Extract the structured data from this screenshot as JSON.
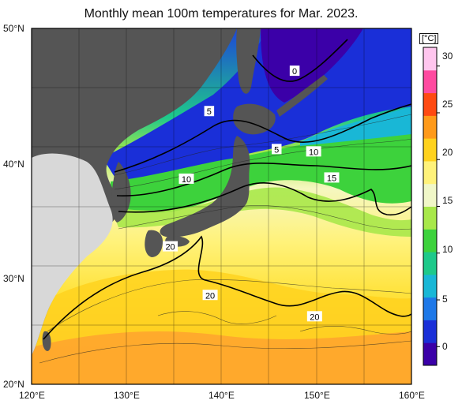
{
  "title": "Monthly mean 100m temperatures for Mar. 2023.",
  "map": {
    "lon_range": [
      120,
      160
    ],
    "lat_range": [
      20,
      50
    ],
    "lon_ticks": [
      "120°E",
      "130°E",
      "140°E",
      "150°E",
      "160°E"
    ],
    "lat_ticks": [
      "50°N",
      "40°N",
      "30°N",
      "20°N"
    ],
    "land_color": "#555555",
    "grid": true
  },
  "colorbar": {
    "unit": "[°C]",
    "ticks": [
      "30",
      "25",
      "20",
      "15",
      "10",
      "5",
      "0"
    ],
    "range": [
      -2,
      32
    ],
    "colors": [
      "#3b00a8",
      "#1a2fd8",
      "#1e78e8",
      "#19b7d6",
      "#1ec98a",
      "#3dd23c",
      "#a8e84a",
      "#f0f7c8",
      "#fff27a",
      "#ffd21e",
      "#ff9a1a",
      "#ff4a12",
      "#ff4aa0",
      "#ffc6ee"
    ]
  },
  "contour_labels": [
    {
      "text": "0",
      "lon": 147.7,
      "lat": 46.4
    },
    {
      "text": "5",
      "lon": 138.7,
      "lat": 43.0
    },
    {
      "text": "5",
      "lon": 145.8,
      "lat": 39.8
    },
    {
      "text": "10",
      "lon": 149.7,
      "lat": 39.6
    },
    {
      "text": "10",
      "lon": 136.3,
      "lat": 37.3
    },
    {
      "text": "15",
      "lon": 151.6,
      "lat": 37.4
    },
    {
      "text": "20",
      "lon": 134.6,
      "lat": 31.6
    },
    {
      "text": "20",
      "lon": 138.8,
      "lat": 27.5
    },
    {
      "text": "20",
      "lon": 149.8,
      "lat": 25.7
    }
  ]
}
